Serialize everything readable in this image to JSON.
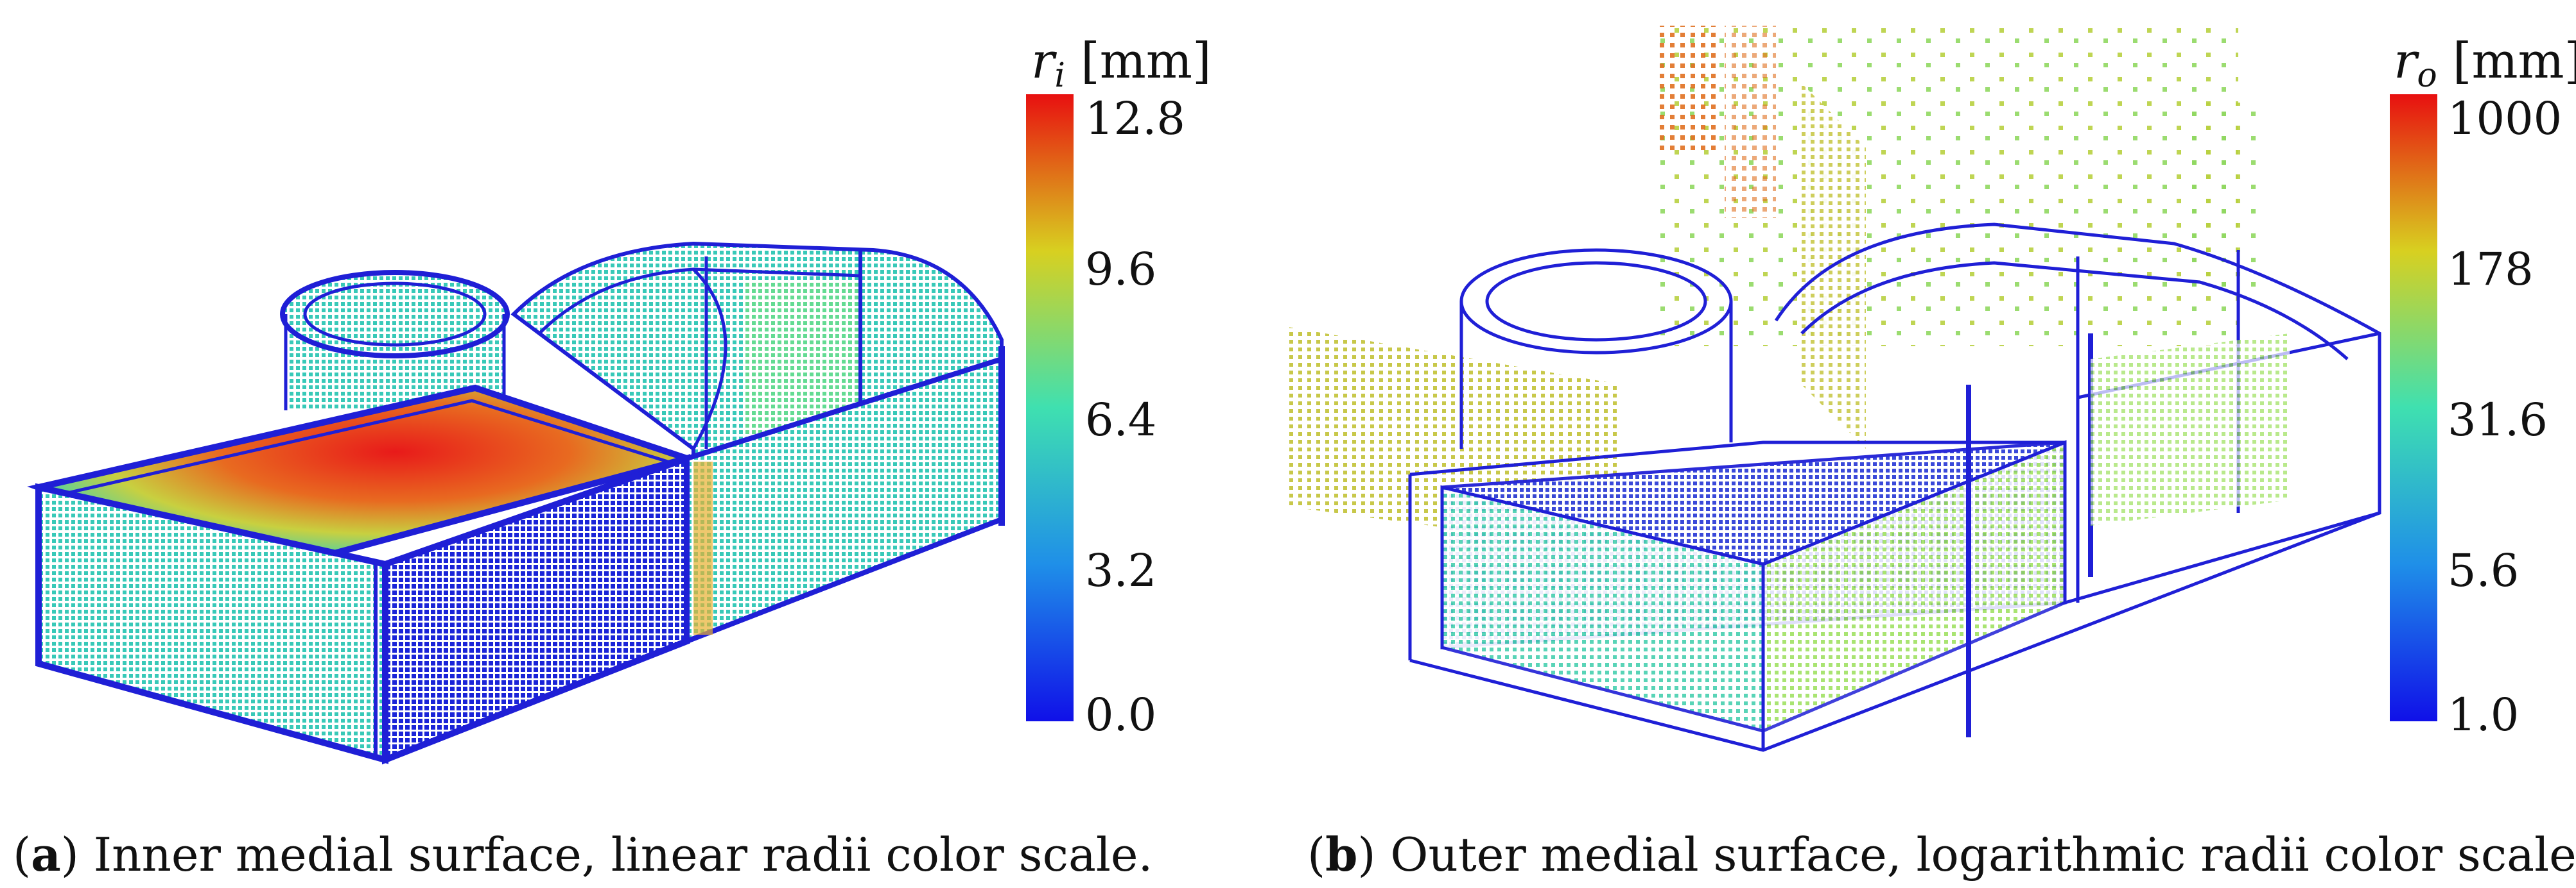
{
  "figure": {
    "panels": [
      {
        "label": "a",
        "caption": "Inner medial surface, linear radii color scale.",
        "colorbar": {
          "symbol": "r",
          "subscript": "i",
          "unit": "[mm]",
          "scale": "linear",
          "ticks": [
            "12.8",
            "9.6",
            "6.4",
            "3.2",
            "0.0"
          ]
        }
      },
      {
        "label": "b",
        "caption": "Outer medial surface, logarithmic radii color scale.",
        "colorbar": {
          "symbol": "r",
          "subscript": "o",
          "unit": "[mm]",
          "scale": "logarithmic",
          "ticks": [
            "1000",
            "178",
            "31.6",
            "5.6",
            "1.0"
          ]
        }
      }
    ],
    "colors": {
      "wireframe": "#1f1fd6",
      "low": "#1a1ae6",
      "mid": "#3fd6a8",
      "high": "#e02020"
    }
  }
}
